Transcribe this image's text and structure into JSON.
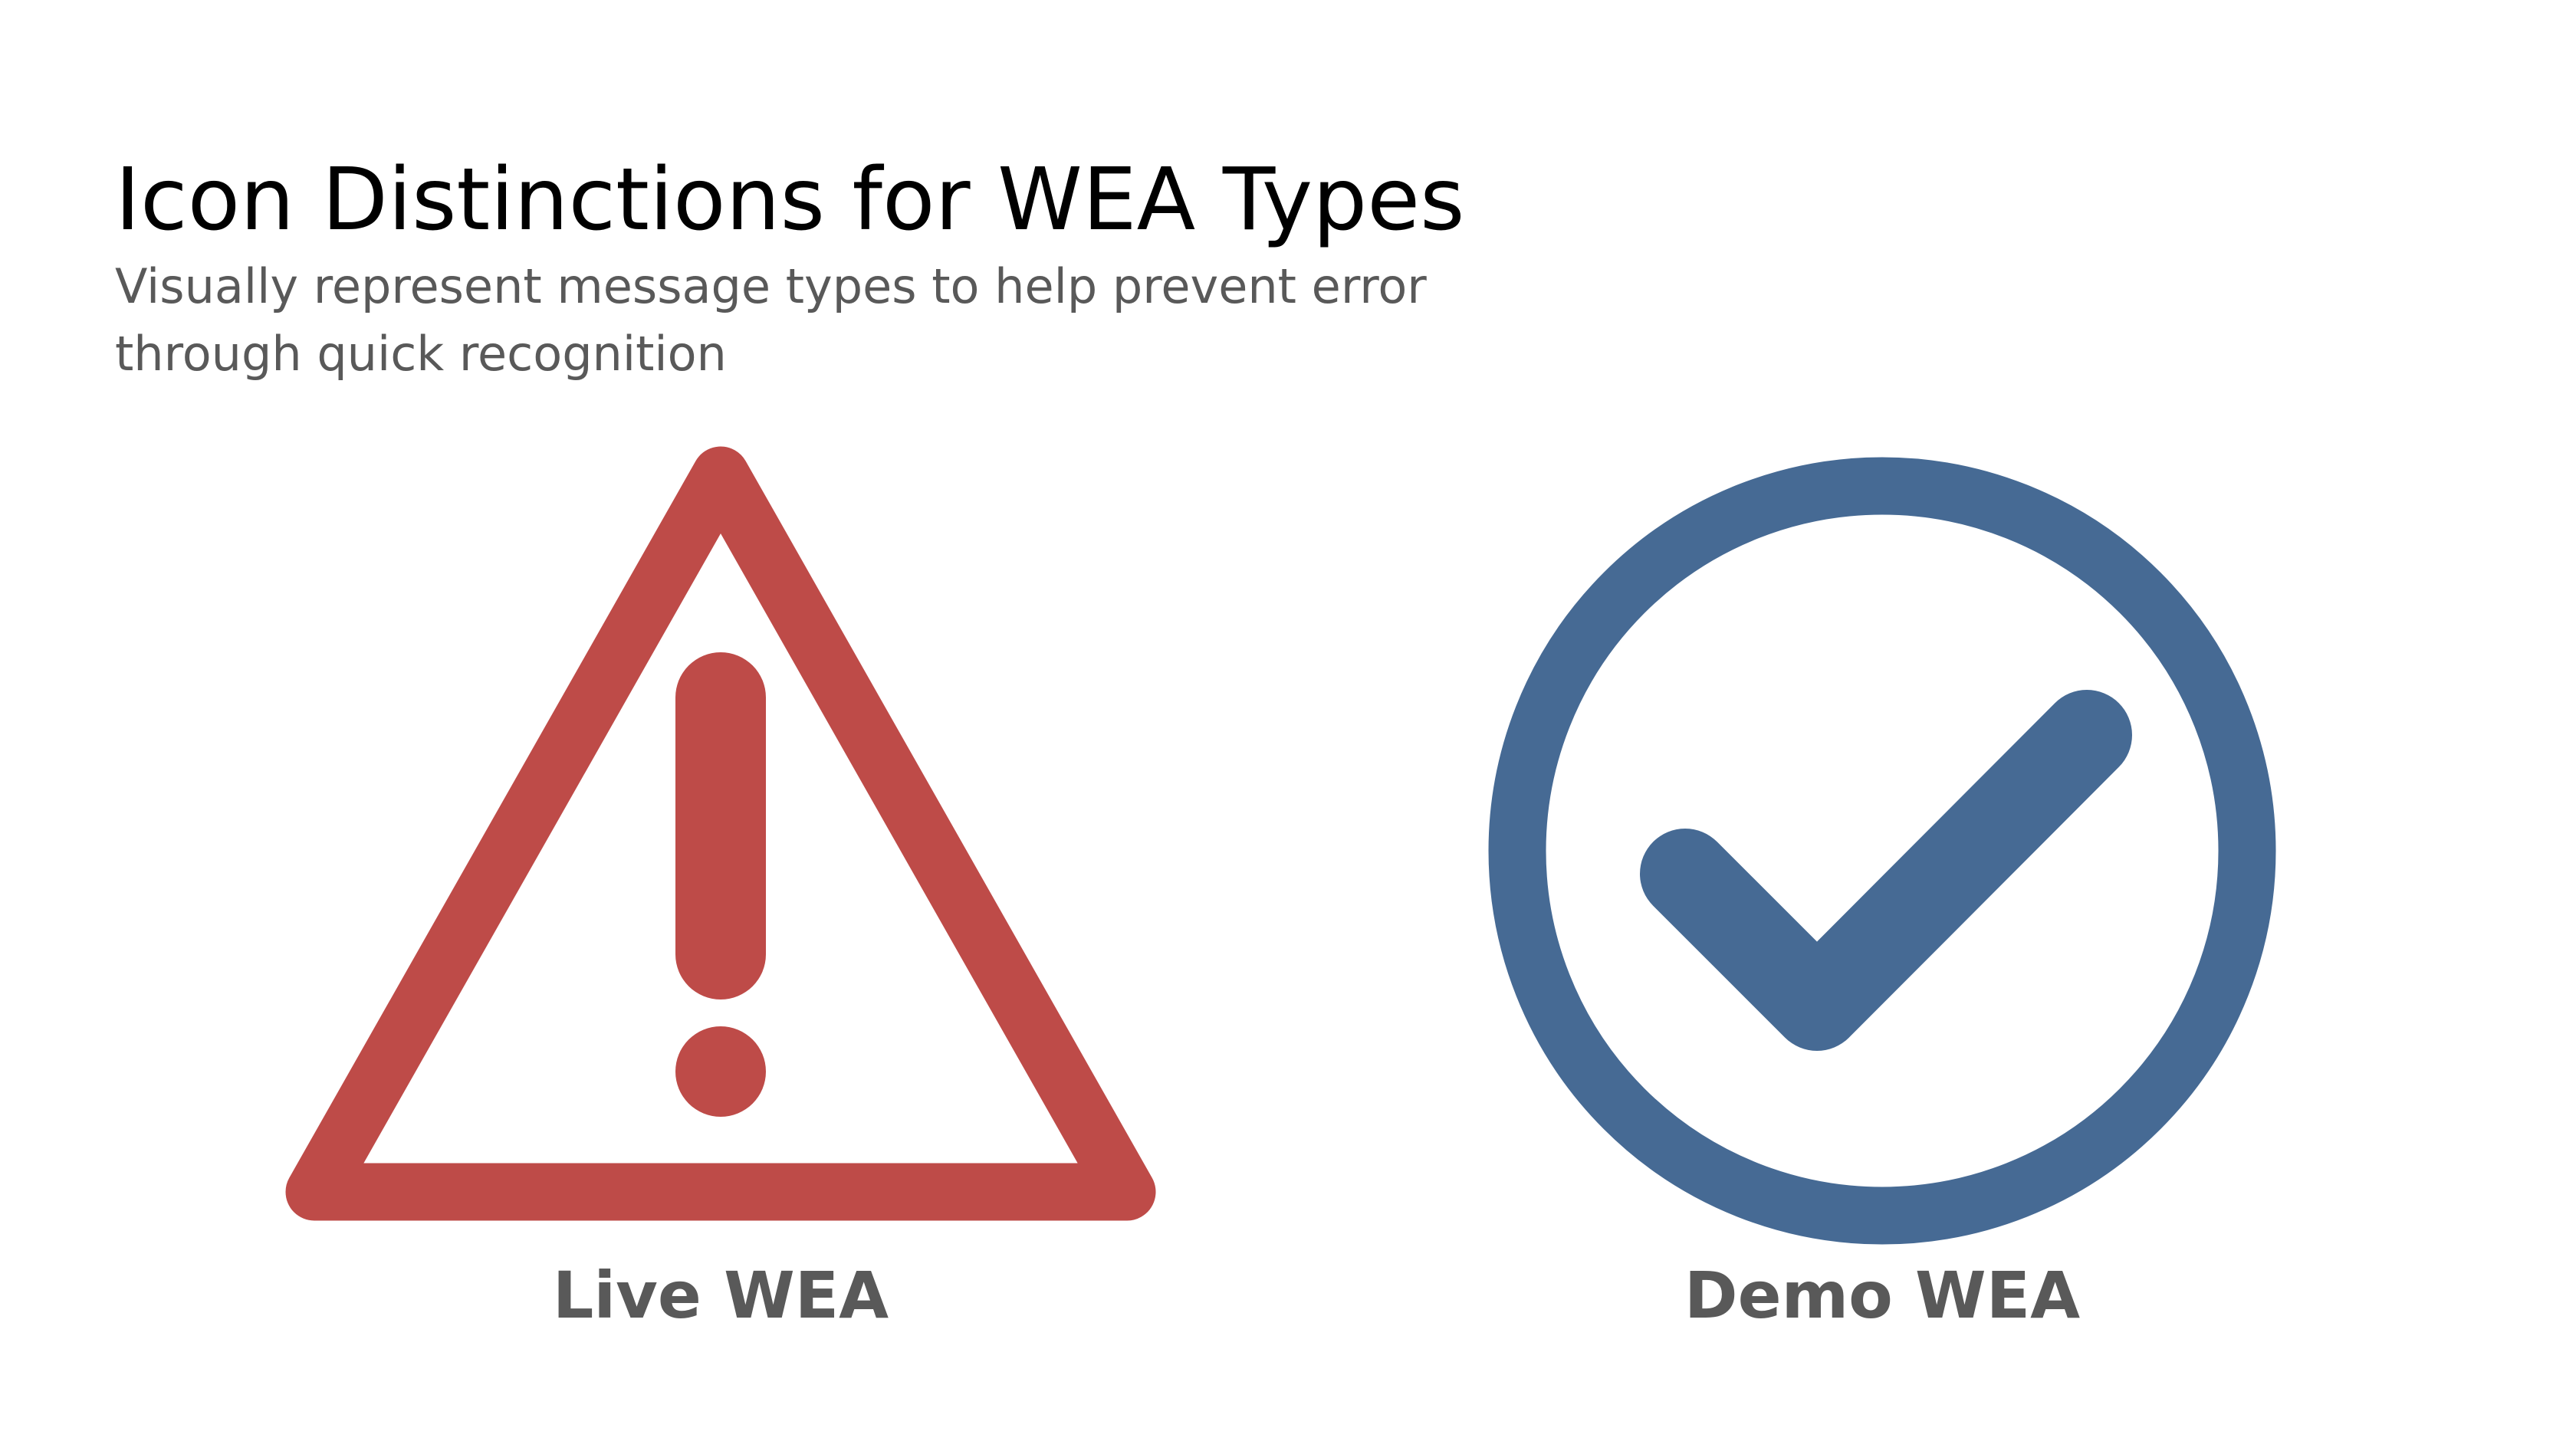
{
  "slide": {
    "title": "Icon Distinctions for WEA Types",
    "subtitle": "Visually represent message types to help prevent error through quick recognition"
  },
  "icons": {
    "live": {
      "icon": "warning-triangle-exclamation-icon",
      "label": "Live WEA",
      "color": "#BE4B48"
    },
    "demo": {
      "icon": "checkmark-circle-icon",
      "label": "Demo WEA",
      "color": "#466A94"
    }
  },
  "colors": {
    "title": "#000000",
    "subtitle": "#595959",
    "caption": "#595959",
    "background": "#FFFFFF"
  }
}
